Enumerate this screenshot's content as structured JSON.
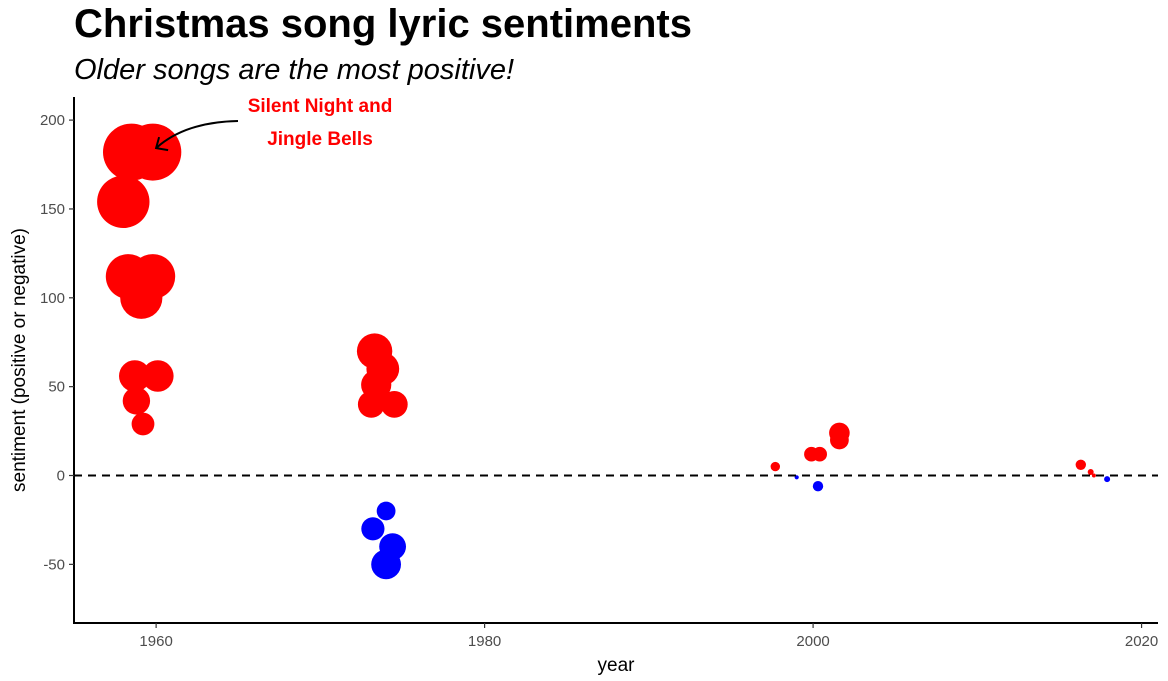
{
  "chart_data": {
    "type": "scatter",
    "title": "Christmas song lyric sentiments",
    "subtitle": "Older songs are the most positive!",
    "xlabel": "year",
    "ylabel": "sentiment (positive or negative)",
    "xlim": [
      1955,
      2021
    ],
    "ylim": [
      -83,
      213
    ],
    "x_ticks": [
      1960,
      1980,
      2000,
      2020
    ],
    "y_ticks": [
      -50,
      0,
      50,
      100,
      150,
      200
    ],
    "reference_line": {
      "y": 0,
      "style": "dashed"
    },
    "grid": false,
    "colors": {
      "positive": "#ff0000",
      "negative": "#0000ff"
    },
    "size_encoding": "absolute sentiment",
    "annotation": {
      "lines": [
        "Silent Night and",
        "Jingle Bells"
      ],
      "color": "#ff0000",
      "arrow_to": {
        "x": 1960,
        "y": 182
      }
    },
    "points": [
      {
        "x": 1958.5,
        "y": 182
      },
      {
        "x": 1959.8,
        "y": 182
      },
      {
        "x": 1958.0,
        "y": 154
      },
      {
        "x": 1958.3,
        "y": 112
      },
      {
        "x": 1959.8,
        "y": 112
      },
      {
        "x": 1959.1,
        "y": 100
      },
      {
        "x": 1958.7,
        "y": 56
      },
      {
        "x": 1960.1,
        "y": 56
      },
      {
        "x": 1958.8,
        "y": 42
      },
      {
        "x": 1959.2,
        "y": 29
      },
      {
        "x": 1973.3,
        "y": 70
      },
      {
        "x": 1973.8,
        "y": 60
      },
      {
        "x": 1973.4,
        "y": 51
      },
      {
        "x": 1973.1,
        "y": 40
      },
      {
        "x": 1974.5,
        "y": 40
      },
      {
        "x": 1974.0,
        "y": -20
      },
      {
        "x": 1973.2,
        "y": -30
      },
      {
        "x": 1974.4,
        "y": -40
      },
      {
        "x": 1974.0,
        "y": -50
      },
      {
        "x": 1997.7,
        "y": 5
      },
      {
        "x": 1999.0,
        "y": -1
      },
      {
        "x": 1999.9,
        "y": 12
      },
      {
        "x": 2000.4,
        "y": 12
      },
      {
        "x": 2000.3,
        "y": -6
      },
      {
        "x": 2001.6,
        "y": 24
      },
      {
        "x": 2001.6,
        "y": 20
      },
      {
        "x": 2016.3,
        "y": 6
      },
      {
        "x": 2016.9,
        "y": 2
      },
      {
        "x": 2017.1,
        "y": 0
      },
      {
        "x": 2017.9,
        "y": -2
      }
    ]
  }
}
